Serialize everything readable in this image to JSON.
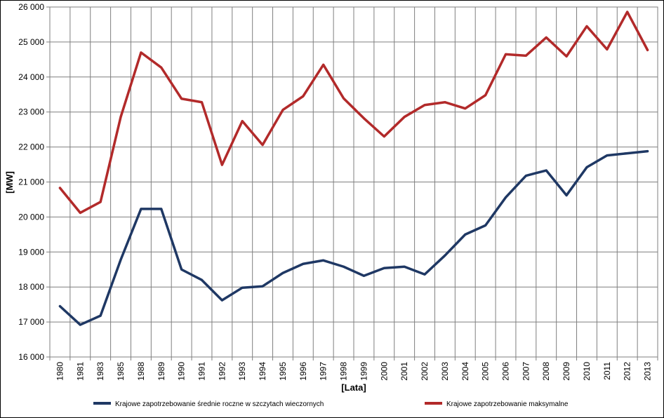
{
  "chart_data": {
    "type": "line",
    "title": "",
    "xlabel": "[Lata]",
    "ylabel": "[MW]",
    "ylim": [
      16000,
      26000
    ],
    "y_ticks": [
      16000,
      17000,
      18000,
      19000,
      20000,
      21000,
      22000,
      23000,
      24000,
      25000,
      26000
    ],
    "y_tick_labels": [
      "16 000",
      "17 000",
      "18 000",
      "19 000",
      "20 000",
      "21 000",
      "22 000",
      "23 000",
      "24 000",
      "25 000",
      "26 000"
    ],
    "grid": true,
    "legend_position": "bottom",
    "categories": [
      "1980",
      "1981",
      "1983",
      "1985",
      "1988",
      "1989",
      "1990",
      "1991",
      "1992",
      "1993",
      "1994",
      "1995",
      "1996",
      "1997",
      "1998",
      "1999",
      "2000",
      "2001",
      "2002",
      "2003",
      "2004",
      "2005",
      "2006",
      "2007",
      "2008",
      "2009",
      "2010",
      "2011",
      "2012",
      "2013"
    ],
    "series": [
      {
        "name": "Krajowe zapotrzebowanie średnie roczne w szczytach wieczornych",
        "color": "#1f3864",
        "values": [
          17450,
          16920,
          17180,
          18780,
          20230,
          20230,
          18500,
          18200,
          17620,
          17980,
          18020,
          18400,
          18660,
          18760,
          18580,
          18320,
          18540,
          18580,
          18360,
          18900,
          19500,
          19760,
          20560,
          21180,
          21330,
          20620,
          21420,
          21760,
          21820,
          21880
        ]
      },
      {
        "name": "Krajowe zapotrzebowanie maksymalne",
        "color": "#b22a2a",
        "values": [
          20830,
          20120,
          20430,
          22860,
          24700,
          24270,
          23380,
          23280,
          21490,
          22740,
          22060,
          23060,
          23450,
          24350,
          23390,
          22820,
          22300,
          22860,
          23200,
          23280,
          23100,
          23480,
          24650,
          24610,
          25130,
          24590,
          25450,
          24790,
          25860,
          24770
        ]
      }
    ]
  }
}
